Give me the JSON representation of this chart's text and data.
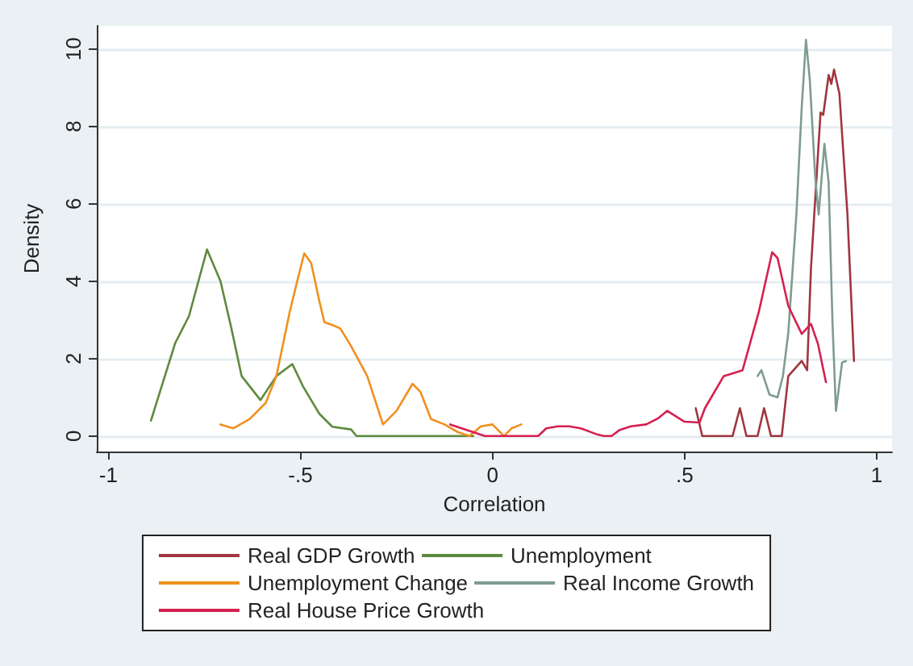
{
  "chart_data": {
    "type": "line",
    "xlabel": "Correlation",
    "ylabel": "Density",
    "xlim": [
      -1.03,
      1.04
    ],
    "xticks": [
      {
        "value": -1,
        "label": "-1"
      },
      {
        "value": -0.5,
        "label": "-.5"
      },
      0,
      {
        "value": 0.5,
        "label": ".5"
      },
      1
    ],
    "ylim": [
      -0.4,
      10.6
    ],
    "yticks": [
      0,
      2,
      4,
      6,
      8,
      10
    ],
    "grid": "y",
    "legend": "bottom",
    "marker": "none",
    "line_style": "solid",
    "series": [
      {
        "name": "Real GDP Growth",
        "color": "#a0363f",
        "x": [
          0.529,
          0.546,
          0.625,
          0.644,
          0.661,
          0.69,
          0.707,
          0.725,
          0.753,
          0.77,
          0.805,
          0.819,
          0.829,
          0.847,
          0.854,
          0.861,
          0.875,
          0.882,
          0.889,
          0.903,
          0.924,
          0.941
        ],
        "values": [
          0.72,
          0,
          0,
          0.72,
          0,
          0,
          0.72,
          0,
          0,
          1.55,
          1.94,
          1.7,
          4.33,
          7.25,
          8.36,
          8.3,
          9.33,
          9.1,
          9.47,
          8.85,
          5.72,
          1.94
        ]
      },
      {
        "name": "Unemployment",
        "color": "#5e8a3e",
        "x": [
          -0.889,
          -0.826,
          -0.79,
          -0.743,
          -0.708,
          -0.68,
          -0.653,
          -0.604,
          -0.5625,
          -0.521,
          -0.493,
          -0.451,
          -0.417,
          -0.368,
          -0.354,
          -0.05
        ],
        "values": [
          0.4,
          2.4,
          3.1,
          4.82,
          4.0,
          2.8,
          1.55,
          0.93,
          1.55,
          1.86,
          1.28,
          0.58,
          0.24,
          0.17,
          0,
          0
        ]
      },
      {
        "name": "Unemployment Change",
        "color": "#f0901e",
        "x": [
          -0.708,
          -0.674,
          -0.632,
          -0.59,
          -0.5625,
          -0.528,
          -0.507,
          -0.49,
          -0.472,
          -0.451,
          -0.4375,
          -0.417,
          -0.396,
          -0.368,
          -0.326,
          -0.285,
          -0.25,
          -0.208,
          -0.1875,
          -0.16,
          -0.125,
          -0.09,
          -0.06,
          -0.03,
          0.0,
          0.03,
          0.05,
          0.075
        ],
        "values": [
          0.3,
          0.2,
          0.44,
          0.86,
          1.55,
          3.2,
          4.05,
          4.72,
          4.47,
          3.5,
          2.94,
          2.87,
          2.78,
          2.32,
          1.55,
          0.3,
          0.65,
          1.35,
          1.14,
          0.44,
          0.3,
          0.1,
          0,
          0.25,
          0.3,
          0,
          0.2,
          0.3
        ]
      },
      {
        "name": "Real Income Growth",
        "color": "#7e9c90",
        "x": [
          0.69,
          0.7,
          0.721,
          0.742,
          0.756,
          0.77,
          0.791,
          0.805,
          0.816,
          0.826,
          0.84,
          0.849,
          0.864,
          0.875,
          0.885,
          0.894,
          0.91,
          0.92
        ],
        "values": [
          1.55,
          1.7,
          1.07,
          1.0,
          1.55,
          2.67,
          5.72,
          8.5,
          10.24,
          9.2,
          6.7,
          5.72,
          7.55,
          6.56,
          2.94,
          0.65,
          1.9,
          1.94
        ]
      },
      {
        "name": "Real House Price Growth",
        "color": "#d62050",
        "x": [
          -0.11,
          -0.05,
          -0.02,
          0.119,
          0.14,
          0.17,
          0.2,
          0.23,
          0.27,
          0.29,
          0.31,
          0.33,
          0.36,
          0.4,
          0.43,
          0.455,
          0.5,
          0.539,
          0.553,
          0.602,
          0.651,
          0.693,
          0.728,
          0.742,
          0.77,
          0.805,
          0.829,
          0.847,
          0.868
        ],
        "values": [
          0.3,
          0.1,
          0,
          0,
          0.2,
          0.25,
          0.25,
          0.2,
          0.05,
          0,
          0,
          0.15,
          0.25,
          0.3,
          0.45,
          0.65,
          0.37,
          0.35,
          0.72,
          1.55,
          1.7,
          3.2,
          4.75,
          4.6,
          3.36,
          2.64,
          2.9,
          2.39,
          1.39
        ]
      }
    ]
  }
}
